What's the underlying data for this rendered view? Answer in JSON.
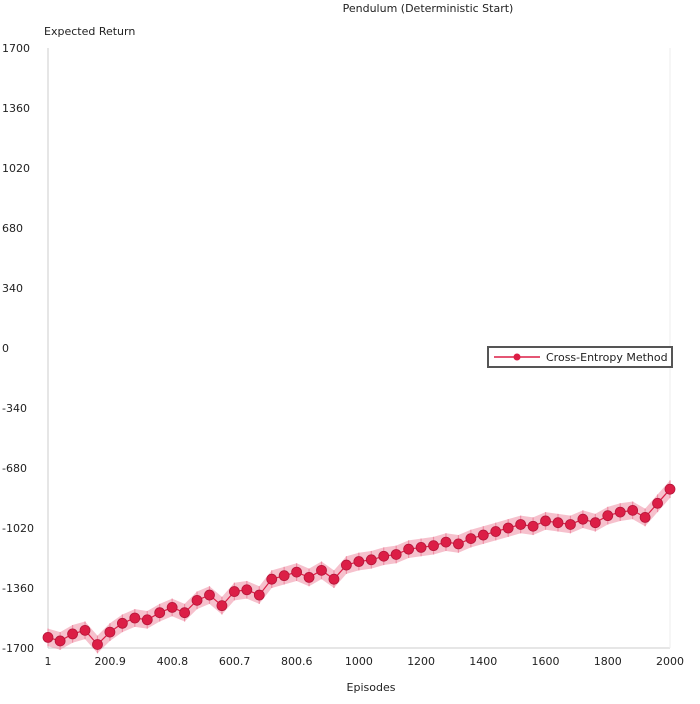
{
  "chart_data": {
    "type": "line",
    "title": "Pendulum (Deterministic Start)",
    "ylabel": "Expected Return",
    "xlabel": "Episodes",
    "xlim": [
      1,
      2000
    ],
    "ylim": [
      -1700,
      1700
    ],
    "x_ticks": [
      1,
      200.9,
      400.8,
      600.7,
      800.6,
      1000,
      1200,
      1400,
      1600,
      1800,
      2000
    ],
    "y_ticks": [
      1700,
      1360,
      1020,
      680,
      340,
      0,
      -340,
      -680,
      -1020,
      -1360,
      -1700
    ],
    "grid": false,
    "legend_position": "right",
    "colors": {
      "series": "#dc1e46",
      "band": "#ee8ea4",
      "legend_border": "#555555",
      "axis": "#cccccc"
    },
    "series": [
      {
        "name": "Cross-Entropy Method",
        "x": [
          1,
          40,
          80,
          120,
          160,
          200,
          240,
          280,
          320,
          360,
          400,
          440,
          480,
          520,
          560,
          600,
          640,
          680,
          720,
          760,
          800,
          840,
          880,
          920,
          960,
          1000,
          1040,
          1080,
          1120,
          1160,
          1200,
          1240,
          1280,
          1320,
          1360,
          1400,
          1440,
          1480,
          1520,
          1560,
          1600,
          1640,
          1680,
          1720,
          1760,
          1800,
          1840,
          1880,
          1920,
          1960,
          2000
        ],
        "values": [
          -1640,
          -1660,
          -1620,
          -1600,
          -1680,
          -1610,
          -1560,
          -1530,
          -1540,
          -1500,
          -1470,
          -1500,
          -1430,
          -1400,
          -1460,
          -1380,
          -1370,
          -1400,
          -1310,
          -1290,
          -1270,
          -1300,
          -1260,
          -1310,
          -1230,
          -1210,
          -1200,
          -1180,
          -1170,
          -1140,
          -1130,
          -1120,
          -1100,
          -1110,
          -1080,
          -1060,
          -1040,
          -1020,
          -1000,
          -1010,
          -980,
          -990,
          -1000,
          -970,
          -990,
          -950,
          -930,
          -920,
          -960,
          -880,
          -800
        ],
        "err": [
          50,
          50,
          50,
          50,
          50,
          50,
          50,
          50,
          50,
          50,
          50,
          50,
          50,
          50,
          50,
          50,
          50,
          50,
          50,
          50,
          50,
          50,
          50,
          50,
          50,
          50,
          50,
          50,
          50,
          50,
          50,
          50,
          50,
          50,
          50,
          50,
          50,
          50,
          50,
          50,
          50,
          50,
          50,
          50,
          50,
          50,
          50,
          50,
          50,
          50,
          50
        ]
      }
    ]
  }
}
